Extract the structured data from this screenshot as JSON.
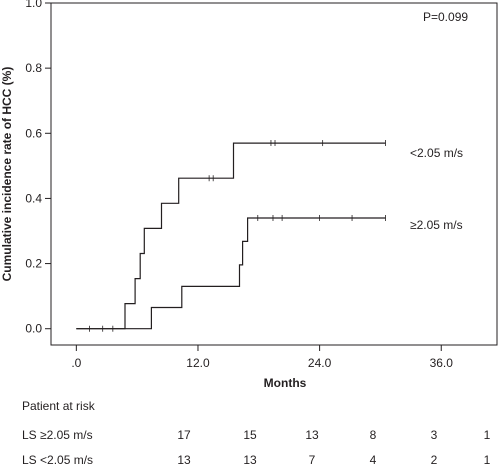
{
  "chart_data": {
    "type": "line",
    "title": "",
    "xlabel": "Months",
    "ylabel": "Cumulative incidence rate of HCC (%)",
    "xlim": [
      -2.5,
      41.5
    ],
    "ylim": [
      -0.05,
      1.0
    ],
    "x_ticks": [
      ".0",
      "12.0",
      "24.0",
      "36.0"
    ],
    "x_tick_values": [
      0,
      12,
      24,
      36
    ],
    "y_ticks": [
      "0.0",
      "0.2",
      "0.4",
      "0.6",
      "0.8",
      "1.0"
    ],
    "y_tick_values": [
      0.0,
      0.2,
      0.4,
      0.6,
      0.8,
      1.0
    ],
    "grid": false,
    "annotation": "P=0.099",
    "series": [
      {
        "name": "<2.05 m/s",
        "step_x": [
          0,
          4.8,
          4.8,
          5.8,
          5.8,
          6.3,
          6.3,
          6.7,
          6.7,
          8.4,
          8.4,
          10.1,
          10.1,
          13.3,
          13.3,
          15.5,
          15.5,
          30.5
        ],
        "step_y": [
          0,
          0,
          0.077,
          0.077,
          0.154,
          0.154,
          0.231,
          0.231,
          0.308,
          0.308,
          0.385,
          0.385,
          0.462,
          0.462,
          0.462,
          0.462,
          0.57,
          0.57
        ],
        "censor_x": [
          1.3,
          13.1,
          13.5,
          19.2,
          19.6,
          24.3,
          30.5
        ]
      },
      {
        "name": "≥2.05 m/s",
        "step_x": [
          0,
          7.4,
          7.4,
          10.4,
          10.4,
          16.1,
          16.1,
          16.4,
          16.4,
          16.9,
          16.9,
          17.5,
          17.5,
          30.5
        ],
        "step_y": [
          0,
          0,
          0.065,
          0.065,
          0.13,
          0.13,
          0.196,
          0.196,
          0.268,
          0.268,
          0.34,
          0.34,
          0.34,
          0.34
        ],
        "censor_x": [
          2.6,
          3.6,
          17.9,
          19.4,
          20.3,
          24.0,
          27.2,
          30.5
        ]
      }
    ]
  },
  "risk_table": {
    "title": "Patient at risk",
    "rows": [
      {
        "label": "LS ≥2.05 m/s",
        "values": [
          "17",
          "15",
          "13",
          "8",
          "3",
          "1"
        ]
      },
      {
        "label": "LS <2.05 m/s",
        "values": [
          "13",
          "13",
          "7",
          "4",
          "2",
          "1"
        ]
      }
    ]
  }
}
